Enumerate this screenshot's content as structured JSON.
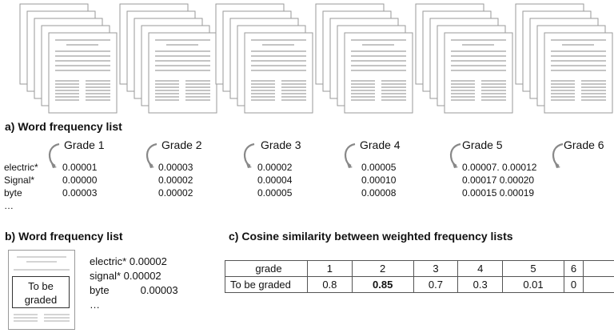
{
  "section_a": {
    "title": "a) Word frequency list",
    "grades": [
      "Grade 1",
      "Grade 2",
      "Grade 3",
      "Grade 4",
      "Grade 5",
      "Grade 6"
    ],
    "words": [
      "electric*",
      "Signal*",
      "byte",
      "…"
    ],
    "values": [
      [
        "0.00001",
        "0.00000",
        "0.00003"
      ],
      [
        "0.00003",
        "0.00002",
        "0.00002"
      ],
      [
        "0.00002",
        "0.00004",
        "0.00005"
      ],
      [
        "0.00005",
        "0.00010",
        "0.00008"
      ],
      [
        "0.00007. 0.00012",
        "0.00017 0.00020",
        "0.00015 0.00019"
      ]
    ]
  },
  "section_b": {
    "title": "b) Word frequency list",
    "doc_label_line1": "To be",
    "doc_label_line2": "graded",
    "entries": [
      {
        "word": "electric*",
        "value": "0.00002"
      },
      {
        "word": "signal*",
        "value": "0.00002"
      },
      {
        "word": "byte",
        "value": "0.00003"
      }
    ],
    "ellipsis": "…"
  },
  "section_c": {
    "title": "c) Cosine similarity between weighted frequency lists",
    "header_label": "grade",
    "grades": [
      "1",
      "2",
      "3",
      "4",
      "5",
      "6"
    ],
    "row_label": "To be graded",
    "scores": [
      "0.8",
      "0.85",
      "0.7",
      "0.3",
      "0.01",
      "0"
    ],
    "highlight_index": 1
  }
}
